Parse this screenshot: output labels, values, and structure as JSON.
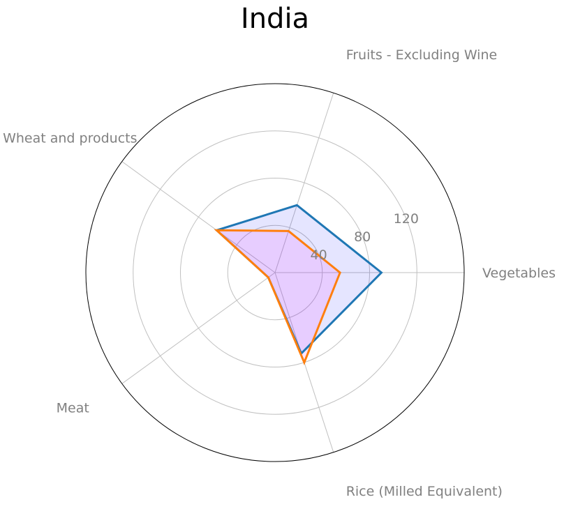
{
  "chart_data": {
    "type": "radar",
    "title": "India",
    "categories": [
      "Vegetables",
      "Fruits - Excluding Wine",
      "Wheat and products",
      "Meat",
      "Rice (Milled Equivalent)"
    ],
    "series": [
      {
        "color": "#1f77b4",
        "fill": "#0000ff",
        "fill_opacity": 0.1,
        "values": [
          90,
          60,
          61,
          7,
          72
        ]
      },
      {
        "color": "#ff7f0e",
        "fill": "#ff00ff",
        "fill_opacity": 0.1,
        "values": [
          55,
          37,
          61,
          7,
          80
        ]
      }
    ],
    "rlim": [
      0,
      160
    ],
    "r_ticks": [
      40,
      80,
      120
    ],
    "r_tick_labels": [
      "40",
      "80",
      "120"
    ],
    "grid": true,
    "gridline_color": "#c0c0c0",
    "outer_ring_color": "#000000",
    "label_color": "#808080"
  }
}
